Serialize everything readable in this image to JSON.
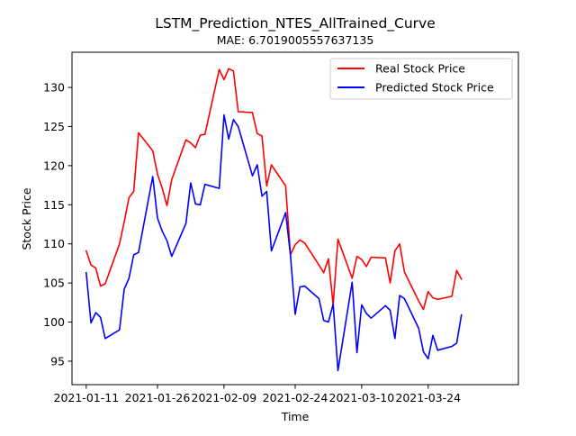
{
  "chart_data": {
    "type": "line",
    "title": "LSTM_Prediction_NTES_AllTrained_Curve",
    "subtitle": "MAE: 6.7019005557637135",
    "xlabel": "Time",
    "ylabel": "Stock Price",
    "ylim": [
      92,
      134.5
    ],
    "xlim": [
      "2021-01-08",
      "2021-04-12"
    ],
    "grid": false,
    "legend_position": "top-right",
    "x_ticks": [
      "2021-01-11",
      "2021-01-26",
      "2021-02-09",
      "2021-02-24",
      "2021-03-10",
      "2021-03-24"
    ],
    "y_ticks": [
      95,
      100,
      105,
      110,
      115,
      120,
      125,
      130
    ],
    "x": [
      "2021-01-11",
      "2021-01-12",
      "2021-01-13",
      "2021-01-14",
      "2021-01-15",
      "2021-01-18",
      "2021-01-19",
      "2021-01-20",
      "2021-01-21",
      "2021-01-22",
      "2021-01-25",
      "2021-01-26",
      "2021-01-27",
      "2021-01-28",
      "2021-01-29",
      "2021-02-01",
      "2021-02-02",
      "2021-02-03",
      "2021-02-04",
      "2021-02-05",
      "2021-02-08",
      "2021-02-09",
      "2021-02-10",
      "2021-02-11",
      "2021-02-12",
      "2021-02-15",
      "2021-02-16",
      "2021-02-17",
      "2021-02-18",
      "2021-02-19",
      "2021-02-22",
      "2021-02-23",
      "2021-02-24",
      "2021-02-25",
      "2021-02-26",
      "2021-03-01",
      "2021-03-02",
      "2021-03-03",
      "2021-03-04",
      "2021-03-05",
      "2021-03-08",
      "2021-03-09",
      "2021-03-10",
      "2021-03-11",
      "2021-03-12",
      "2021-03-15",
      "2021-03-16",
      "2021-03-17",
      "2021-03-18",
      "2021-03-19",
      "2021-03-22",
      "2021-03-23",
      "2021-03-24",
      "2021-03-25",
      "2021-03-26",
      "2021-03-29",
      "2021-03-30",
      "2021-03-31"
    ],
    "series": [
      {
        "name": "Real Stock Price",
        "color": "#ff0000",
        "values": [
          109.1,
          107.3,
          106.9,
          104.6,
          104.9,
          110.0,
          112.8,
          115.9,
          116.7,
          124.2,
          121.9,
          118.9,
          117.1,
          114.9,
          118.2,
          123.3,
          122.9,
          122.3,
          123.9,
          124.0,
          132.3,
          131.0,
          132.4,
          132.1,
          126.9,
          126.8,
          124.1,
          123.8,
          117.4,
          120.1,
          117.4,
          108.6,
          109.9,
          110.5,
          110.1,
          107.3,
          106.3,
          108.1,
          102.2,
          110.6,
          105.6,
          108.4,
          108.0,
          107.1,
          108.3,
          108.2,
          105.0,
          109.1,
          110.0,
          106.4,
          102.7,
          101.6,
          103.9,
          103.1,
          102.9,
          103.3,
          106.6,
          105.5
        ]
      },
      {
        "name": "Predicted Stock Price",
        "color": "#0000ff",
        "values": [
          106.3,
          99.9,
          101.2,
          100.6,
          97.9,
          99.0,
          104.2,
          105.6,
          108.6,
          108.9,
          118.6,
          113.3,
          111.6,
          110.4,
          108.4,
          112.6,
          117.8,
          115.1,
          115.0,
          117.6,
          117.1,
          126.5,
          123.4,
          125.9,
          125.0,
          118.7,
          120.1,
          116.1,
          116.7,
          109.1,
          114.0,
          108.6,
          101.0,
          104.5,
          104.6,
          103.0,
          100.2,
          100.0,
          102.3,
          93.8,
          105.1,
          96.1,
          102.2,
          101.1,
          100.5,
          102.1,
          101.5,
          97.9,
          103.4,
          103.0,
          99.2,
          96.2,
          95.3,
          98.3,
          96.4,
          96.9,
          97.3,
          100.9
        ]
      }
    ]
  }
}
